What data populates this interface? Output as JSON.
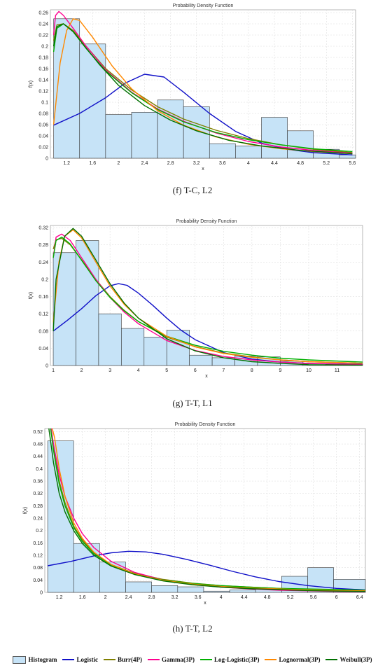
{
  "colors": {
    "histogram_fill": "#c6e3f7",
    "histogram_stroke": "#333333",
    "grid": "#d8d8d8",
    "Logistic": "#1010c8",
    "Burr(4P)": "#808000",
    "Gamma(3P)": "#ff0090",
    "Log-Logistic(3P)": "#00b000",
    "Lognormal(3P)": "#ff8800",
    "Weibull(3P)": "#007000"
  },
  "legend": [
    {
      "key": "Histogram",
      "label": "Histogram",
      "kind": "box"
    },
    {
      "key": "Logistic",
      "label": "Logistic",
      "kind": "line"
    },
    {
      "key": "Burr(4P)",
      "label": "Burr(4P)",
      "kind": "line"
    },
    {
      "key": "Gamma(3P)",
      "label": "Gamma(3P)",
      "kind": "line"
    },
    {
      "key": "Log-Logistic(3P)",
      "label": "Log-Logistic(3P)",
      "kind": "line"
    },
    {
      "key": "Lognormal(3P)",
      "label": "Lognormal(3P)",
      "kind": "line"
    },
    {
      "key": "Weibull(3P)",
      "label": "Weibull(3P)",
      "kind": "line"
    }
  ],
  "chart_data": [
    {
      "type": "bar",
      "caption": "(f) T-C, L2",
      "title": "Probability Density Function",
      "xlabel": "x",
      "ylabel": "f(x)",
      "xlim": [
        0.95,
        5.65
      ],
      "ylim": [
        0,
        0.265
      ],
      "grid": true,
      "xticks": [
        1.2,
        1.6,
        2,
        2.4,
        2.8,
        3.2,
        3.6,
        4,
        4.4,
        4.8,
        5.2,
        5.6
      ],
      "yticks": [
        0,
        0.02,
        0.04,
        0.06,
        0.08,
        0.1,
        0.12,
        0.14,
        0.16,
        0.18,
        0.2,
        0.22,
        0.24,
        0.26
      ],
      "histogram": {
        "edges": [
          1.0,
          1.4,
          1.8,
          2.2,
          2.6,
          3.0,
          3.4,
          3.8,
          4.2,
          4.6,
          5.0,
          5.4,
          5.65
        ],
        "heights": [
          0.249,
          0.204,
          0.078,
          0.082,
          0.104,
          0.092,
          0.026,
          0.022,
          0.073,
          0.049,
          0.016,
          0.006
        ]
      },
      "series": [
        {
          "name": "Logistic",
          "x": [
            1.0,
            1.4,
            1.8,
            2.1,
            2.4,
            2.7,
            3.0,
            3.4,
            3.8,
            4.2,
            4.6,
            5.0,
            5.6
          ],
          "y": [
            0.059,
            0.08,
            0.108,
            0.134,
            0.15,
            0.145,
            0.118,
            0.08,
            0.048,
            0.027,
            0.016,
            0.01,
            0.006
          ]
        },
        {
          "name": "Burr(4P)",
          "x": [
            1.0,
            1.05,
            1.15,
            1.3,
            1.5,
            1.8,
            2.2,
            2.6,
            3.0,
            3.5,
            4.0,
            4.5,
            5.0,
            5.6
          ],
          "y": [
            0.21,
            0.238,
            0.24,
            0.228,
            0.2,
            0.16,
            0.122,
            0.092,
            0.07,
            0.05,
            0.035,
            0.024,
            0.016,
            0.01
          ]
        },
        {
          "name": "Gamma(3P)",
          "x": [
            1.0,
            1.03,
            1.08,
            1.15,
            1.3,
            1.5,
            1.8,
            2.2,
            2.6,
            3.0,
            3.5,
            4.0,
            4.5,
            5.0,
            5.6
          ],
          "y": [
            0.22,
            0.255,
            0.262,
            0.255,
            0.232,
            0.2,
            0.158,
            0.118,
            0.088,
            0.066,
            0.045,
            0.03,
            0.02,
            0.014,
            0.009
          ]
        },
        {
          "name": "Log-Logistic(3P)",
          "x": [
            1.0,
            1.05,
            1.15,
            1.3,
            1.5,
            1.8,
            2.2,
            2.6,
            3.0,
            3.5,
            4.0,
            4.5,
            5.0,
            5.6
          ],
          "y": [
            0.19,
            0.232,
            0.24,
            0.226,
            0.196,
            0.156,
            0.117,
            0.087,
            0.065,
            0.046,
            0.033,
            0.024,
            0.017,
            0.012
          ]
        },
        {
          "name": "Lognormal(3P)",
          "x": [
            1.0,
            1.1,
            1.2,
            1.3,
            1.4,
            1.6,
            1.9,
            2.2,
            2.6,
            3.0,
            3.5,
            4.0,
            4.5,
            5.0,
            5.6
          ],
          "y": [
            0.06,
            0.17,
            0.228,
            0.249,
            0.246,
            0.216,
            0.165,
            0.124,
            0.085,
            0.059,
            0.038,
            0.025,
            0.017,
            0.012,
            0.008
          ]
        },
        {
          "name": "Weibull(3P)",
          "x": [
            1.0,
            1.05,
            1.15,
            1.3,
            1.45,
            1.7,
            2.0,
            2.4,
            2.8,
            3.2,
            3.7,
            4.2,
            4.8,
            5.6
          ],
          "y": [
            0.2,
            0.235,
            0.24,
            0.226,
            0.204,
            0.168,
            0.13,
            0.094,
            0.068,
            0.049,
            0.032,
            0.022,
            0.014,
            0.008
          ]
        }
      ]
    },
    {
      "type": "bar",
      "caption": "(g) T-T, L1",
      "title": "Probability Density Function",
      "xlabel": "x",
      "ylabel": "f(x)",
      "xlim": [
        0.9,
        11.9
      ],
      "ylim": [
        0,
        0.325
      ],
      "grid": true,
      "xticks": [
        1,
        2,
        3,
        4,
        5,
        6,
        7,
        8,
        9,
        10,
        11
      ],
      "yticks": [
        0,
        0.04,
        0.08,
        0.12,
        0.16,
        0.2,
        0.24,
        0.28,
        0.32
      ],
      "histogram": {
        "edges": [
          1.0,
          1.8,
          2.6,
          3.4,
          4.2,
          5.0,
          5.8,
          6.6,
          7.4,
          8.2,
          9.0,
          9.8,
          10.6,
          11.9
        ],
        "heights": [
          0.262,
          0.29,
          0.12,
          0.086,
          0.066,
          0.082,
          0.024,
          0.018,
          0.022,
          0.02,
          0.01,
          0.004,
          0.003
        ]
      },
      "series": [
        {
          "name": "Logistic",
          "x": [
            1.0,
            1.5,
            2.0,
            2.5,
            3.0,
            3.3,
            3.6,
            4.0,
            4.5,
            5.0,
            5.5,
            6.0,
            7.0,
            8.0,
            9.0,
            10.0,
            11.9
          ],
          "y": [
            0.08,
            0.105,
            0.132,
            0.162,
            0.185,
            0.19,
            0.186,
            0.168,
            0.14,
            0.11,
            0.082,
            0.06,
            0.03,
            0.015,
            0.008,
            0.005,
            0.003
          ]
        },
        {
          "name": "Burr(4P)",
          "x": [
            1.0,
            1.1,
            1.3,
            1.6,
            2.0,
            2.5,
            3.0,
            3.5,
            4.0,
            5.0,
            6.0,
            7.0,
            8.0,
            9.0,
            10.0,
            11.9
          ],
          "y": [
            0.27,
            0.292,
            0.295,
            0.28,
            0.245,
            0.2,
            0.16,
            0.128,
            0.102,
            0.066,
            0.044,
            0.029,
            0.02,
            0.013,
            0.009,
            0.005
          ]
        },
        {
          "name": "Gamma(3P)",
          "x": [
            1.0,
            1.1,
            1.3,
            1.6,
            2.0,
            2.5,
            3.0,
            3.5,
            4.0,
            5.0,
            6.0,
            7.0,
            8.0,
            9.0,
            10.0,
            11.9
          ],
          "y": [
            0.25,
            0.298,
            0.305,
            0.29,
            0.25,
            0.2,
            0.158,
            0.124,
            0.097,
            0.058,
            0.035,
            0.021,
            0.013,
            0.008,
            0.005,
            0.002
          ]
        },
        {
          "name": "Log-Logistic(3P)",
          "x": [
            1.0,
            1.1,
            1.3,
            1.6,
            2.0,
            2.5,
            3.0,
            3.5,
            4.0,
            5.0,
            6.0,
            7.0,
            8.0,
            9.0,
            10.0,
            11.9
          ],
          "y": [
            0.25,
            0.29,
            0.298,
            0.282,
            0.244,
            0.197,
            0.158,
            0.127,
            0.102,
            0.068,
            0.047,
            0.033,
            0.024,
            0.017,
            0.013,
            0.008
          ]
        },
        {
          "name": "Lognormal(3P)",
          "x": [
            1.0,
            1.2,
            1.4,
            1.7,
            2.0,
            2.5,
            3.0,
            3.5,
            4.0,
            5.0,
            6.0,
            7.0,
            8.0,
            9.0,
            10.0,
            11.9
          ],
          "y": [
            0.1,
            0.24,
            0.3,
            0.315,
            0.296,
            0.24,
            0.185,
            0.142,
            0.11,
            0.068,
            0.043,
            0.028,
            0.019,
            0.013,
            0.009,
            0.005
          ]
        },
        {
          "name": "Weibull(3P)",
          "x": [
            1.0,
            1.1,
            1.4,
            1.7,
            2.0,
            2.5,
            3.0,
            3.5,
            4.0,
            5.0,
            6.0,
            7.0,
            8.0,
            9.0,
            10.0,
            11.9
          ],
          "y": [
            0.08,
            0.2,
            0.3,
            0.318,
            0.3,
            0.245,
            0.19,
            0.145,
            0.11,
            0.062,
            0.034,
            0.018,
            0.009,
            0.005,
            0.002,
            0.001
          ]
        }
      ]
    },
    {
      "type": "bar",
      "caption": "(h) T-T, L2",
      "title": "Probability Density Function",
      "xlabel": "x",
      "ylabel": "f(x)",
      "xlim": [
        0.95,
        6.5
      ],
      "ylim": [
        0,
        0.53
      ],
      "grid": true,
      "xticks": [
        1.2,
        1.6,
        2,
        2.4,
        2.8,
        3.2,
        3.6,
        4,
        4.4,
        4.8,
        5.2,
        5.6,
        6,
        6.4
      ],
      "yticks": [
        0,
        0.04,
        0.08,
        0.12,
        0.16,
        0.2,
        0.24,
        0.28,
        0.32,
        0.36,
        0.4,
        0.44,
        0.48,
        0.52
      ],
      "histogram": {
        "edges": [
          1.0,
          1.45,
          1.9,
          2.35,
          2.8,
          3.25,
          3.7,
          4.15,
          4.6,
          5.05,
          5.5,
          5.95,
          6.5
        ],
        "heights": [
          0.49,
          0.158,
          0.098,
          0.034,
          0.022,
          0.018,
          0.004,
          0.008,
          0.01,
          0.052,
          0.08,
          0.042
        ]
      },
      "series": [
        {
          "name": "Logistic",
          "x": [
            1.0,
            1.4,
            1.8,
            2.1,
            2.4,
            2.7,
            3.0,
            3.4,
            3.8,
            4.2,
            4.6,
            5.0,
            5.5,
            6.0,
            6.5
          ],
          "y": [
            0.086,
            0.1,
            0.118,
            0.128,
            0.133,
            0.131,
            0.123,
            0.107,
            0.088,
            0.068,
            0.05,
            0.035,
            0.022,
            0.013,
            0.008
          ]
        },
        {
          "name": "Burr(4P)",
          "x": [
            1.05,
            1.1,
            1.2,
            1.3,
            1.45,
            1.6,
            1.8,
            2.1,
            2.5,
            3.0,
            3.5,
            4.0,
            4.5,
            5.0,
            5.5,
            6.0,
            6.5
          ],
          "y": [
            0.53,
            0.47,
            0.36,
            0.29,
            0.215,
            0.17,
            0.128,
            0.09,
            0.062,
            0.042,
            0.03,
            0.022,
            0.017,
            0.013,
            0.01,
            0.008,
            0.006
          ]
        },
        {
          "name": "Gamma(3P)",
          "x": [
            1.06,
            1.1,
            1.2,
            1.3,
            1.45,
            1.6,
            1.8,
            2.1,
            2.5,
            3.0,
            3.5,
            4.0,
            4.5,
            5.0,
            5.5,
            6.0,
            6.5
          ],
          "y": [
            0.53,
            0.48,
            0.38,
            0.31,
            0.24,
            0.19,
            0.145,
            0.1,
            0.065,
            0.04,
            0.026,
            0.017,
            0.011,
            0.007,
            0.005,
            0.003,
            0.002
          ]
        },
        {
          "name": "Log-Logistic(3P)",
          "x": [
            1.05,
            1.1,
            1.2,
            1.3,
            1.45,
            1.6,
            1.8,
            2.1,
            2.5,
            3.0,
            3.5,
            4.0,
            4.5,
            5.0,
            5.5,
            6.0,
            6.5
          ],
          "y": [
            0.53,
            0.46,
            0.35,
            0.28,
            0.21,
            0.165,
            0.125,
            0.088,
            0.06,
            0.04,
            0.029,
            0.022,
            0.017,
            0.013,
            0.011,
            0.009,
            0.007
          ]
        },
        {
          "name": "Lognormal(3P)",
          "x": [
            1.08,
            1.12,
            1.2,
            1.3,
            1.45,
            1.6,
            1.8,
            2.1,
            2.5,
            3.0,
            3.5,
            4.0,
            4.5,
            5.0,
            5.5,
            6.0,
            6.5
          ],
          "y": [
            0.53,
            0.5,
            0.4,
            0.31,
            0.225,
            0.175,
            0.13,
            0.09,
            0.06,
            0.039,
            0.027,
            0.019,
            0.014,
            0.011,
            0.008,
            0.006,
            0.005
          ]
        },
        {
          "name": "Weibull(3P)",
          "x": [
            1.02,
            1.1,
            1.2,
            1.3,
            1.45,
            1.6,
            1.8,
            2.1,
            2.5,
            3.0,
            3.5,
            4.0,
            4.5,
            5.0,
            5.5,
            6.0,
            6.5
          ],
          "y": [
            0.53,
            0.42,
            0.32,
            0.26,
            0.2,
            0.158,
            0.12,
            0.085,
            0.058,
            0.037,
            0.025,
            0.017,
            0.012,
            0.009,
            0.006,
            0.004,
            0.003
          ]
        }
      ]
    }
  ]
}
